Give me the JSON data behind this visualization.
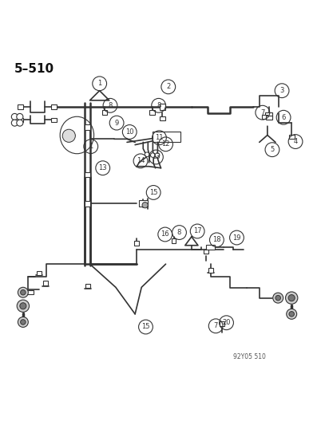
{
  "title": "5–510",
  "watermark": "92Y05 510",
  "background": "#ffffff",
  "line_color": "#333333",
  "text_color": "#111111",
  "figsize": [
    4.07,
    5.33
  ],
  "dpi": 100
}
